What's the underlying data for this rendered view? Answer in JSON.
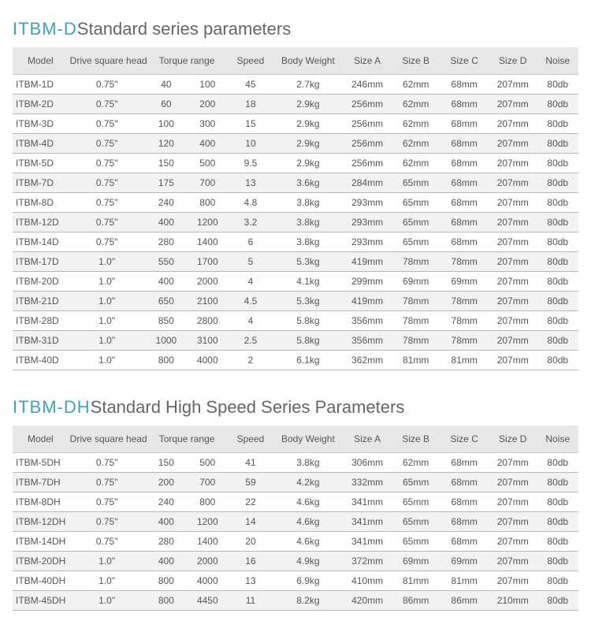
{
  "sections": [
    {
      "prefix": "ITBM-D",
      "suffix": "Standard series parameters",
      "columns": [
        "Model",
        "Drive square head",
        "Torque range",
        "Speed",
        "Body Weight",
        "Size A",
        "Size B",
        "Size C",
        "Size D",
        "Noise"
      ],
      "rows": [
        [
          "ITBM-1D",
          "0.75\"",
          "40",
          "100",
          "45",
          "2.7kg",
          "246mm",
          "62mm",
          "68mm",
          "207mm",
          "80db"
        ],
        [
          "ITBM-2D",
          "0.75\"",
          "60",
          "200",
          "18",
          "2.9kg",
          "256mm",
          "62mm",
          "68mm",
          "207mm",
          "80db"
        ],
        [
          "ITBM-3D",
          "0.75\"",
          "100",
          "300",
          "15",
          "2.9kg",
          "256mm",
          "62mm",
          "68mm",
          "207mm",
          "80db"
        ],
        [
          "ITBM-4D",
          "0.75\"",
          "120",
          "400",
          "10",
          "2.9kg",
          "256mm",
          "62mm",
          "68mm",
          "207mm",
          "80db"
        ],
        [
          "ITBM-5D",
          "0.75\"",
          "150",
          "500",
          "9.5",
          "2.9kg",
          "256mm",
          "62mm",
          "68mm",
          "207mm",
          "80db"
        ],
        [
          "ITBM-7D",
          "0.75\"",
          "175",
          "700",
          "13",
          "3.6kg",
          "284mm",
          "65mm",
          "68mm",
          "207mm",
          "80db"
        ],
        [
          "ITBM-8D",
          "0.75\"",
          "240",
          "800",
          "4.8",
          "3.8kg",
          "293mm",
          "65mm",
          "68mm",
          "207mm",
          "80db"
        ],
        [
          "ITBM-12D",
          "0.75\"",
          "400",
          "1200",
          "3.2",
          "3.8kg",
          "293mm",
          "65mm",
          "68mm",
          "207mm",
          "80db"
        ],
        [
          "ITBM-14D",
          "0.75\"",
          "280",
          "1400",
          "6",
          "3.8kg",
          "293mm",
          "65mm",
          "68mm",
          "207mm",
          "80db"
        ],
        [
          "ITBM-17D",
          "1.0\"",
          "550",
          "1700",
          "5",
          "5.3kg",
          "419mm",
          "78mm",
          "78mm",
          "207mm",
          "80db"
        ],
        [
          "ITBM-20D",
          "1.0\"",
          "400",
          "2000",
          "4",
          "4.1kg",
          "299mm",
          "69mm",
          "69mm",
          "207mm",
          "80db"
        ],
        [
          "ITBM-21D",
          "1.0\"",
          "650",
          "2100",
          "4.5",
          "5.3kg",
          "419mm",
          "78mm",
          "78mm",
          "207mm",
          "80db"
        ],
        [
          "ITBM-28D",
          "1.0\"",
          "850",
          "2800",
          "4",
          "5.8kg",
          "356mm",
          "78mm",
          "78mm",
          "207mm",
          "80db"
        ],
        [
          "ITBM-31D",
          "1.0\"",
          "1000",
          "3100",
          "2.5",
          "5.8kg",
          "356mm",
          "78mm",
          "78mm",
          "207mm",
          "80db"
        ],
        [
          "ITBM-40D",
          "1.0\"",
          "800",
          "4000",
          "2",
          "6.1kg",
          "362mm",
          "81mm",
          "81mm",
          "207mm",
          "80db"
        ]
      ]
    },
    {
      "prefix": "ITBM-DH",
      "suffix": "Standard High Speed Series Parameters",
      "columns": [
        "Model",
        "Drive square head",
        "Torque range",
        "Speed",
        "Body Weight",
        "Size A",
        "Size B",
        "Size C",
        "Size D",
        "Noise"
      ],
      "rows": [
        [
          "ITBM-5DH",
          "0.75\"",
          "150",
          "500",
          "41",
          "3.8kg",
          "306mm",
          "62mm",
          "68mm",
          "207mm",
          "80db"
        ],
        [
          "ITBM-7DH",
          "0.75\"",
          "200",
          "700",
          "59",
          "4.2kg",
          "332mm",
          "65mm",
          "68mm",
          "207mm",
          "80db"
        ],
        [
          "ITBM-8DH",
          "0.75\"",
          "240",
          "800",
          "22",
          "4.6kg",
          "341mm",
          "65mm",
          "68mm",
          "207mm",
          "80db"
        ],
        [
          "ITBM-12DH",
          "0.75\"",
          "400",
          "1200",
          "14",
          "4.6kg",
          "341mm",
          "65mm",
          "68mm",
          "207mm",
          "80db"
        ],
        [
          "ITBM-14DH",
          "0.75\"",
          "280",
          "1400",
          "20",
          "4.6kg",
          "341mm",
          "65mm",
          "68mm",
          "207mm",
          "80db"
        ],
        [
          "ITBM-20DH",
          "1.0\"",
          "400",
          "2000",
          "16",
          "4.9kg",
          "372mm",
          "69mm",
          "69mm",
          "207mm",
          "80db"
        ],
        [
          "ITBM-40DH",
          "1.0\"",
          "800",
          "4000",
          "13",
          "6.9kg",
          "410mm",
          "81mm",
          "81mm",
          "207mm",
          "80db"
        ],
        [
          "ITBM-45DH",
          "1.0\"",
          "800",
          "4450",
          "11",
          "8.2kg",
          "420mm",
          "86mm",
          "86mm",
          "210mm",
          "80db"
        ]
      ]
    }
  ],
  "style": {
    "prefix_color": "#3ea3bf",
    "title_color": "#666666",
    "header_bg": "#e7e7e7",
    "row_even_bg": "#f2f2f2",
    "row_odd_bg": "#ffffff",
    "border_color": "#b8b8b8",
    "body_fontsize": 12,
    "title_fontsize": 22
  }
}
